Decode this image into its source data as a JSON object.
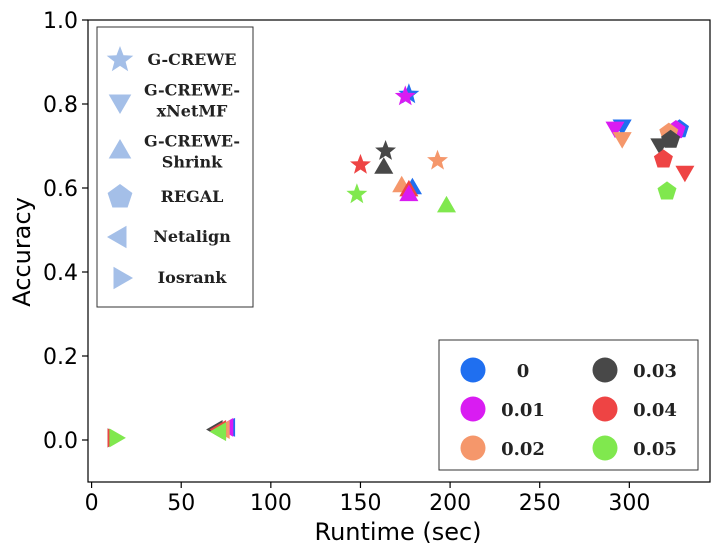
{
  "chart_data": {
    "type": "scatter",
    "xlabel": "Runtime (sec)",
    "ylabel": "Accuracy",
    "xlim": [
      -2,
      345
    ],
    "ylim": [
      -0.1,
      1.0
    ],
    "xticks": [
      "0",
      "50",
      "100",
      "150",
      "200",
      "250",
      "300"
    ],
    "yticks": [
      "0.0",
      "0.2",
      "0.4",
      "0.6",
      "0.8",
      "1.0"
    ],
    "methods": [
      {
        "name": "G-CREWE",
        "lines": [
          "G-CREWE"
        ],
        "marker": "star"
      },
      {
        "name": "G-CREWE-xNetMF",
        "lines": [
          "G-CREWE-",
          "xNetMF"
        ],
        "marker": "triangle-down"
      },
      {
        "name": "G-CREWE-Shrink",
        "lines": [
          "G-CREWE-",
          "Shrink"
        ],
        "marker": "triangle-up"
      },
      {
        "name": "REGAL",
        "lines": [
          "REGAL"
        ],
        "marker": "pentagon"
      },
      {
        "name": "Netalign",
        "lines": [
          "Netalign"
        ],
        "marker": "triangle-left"
      },
      {
        "name": "Iosrank",
        "lines": [
          "Iosrank"
        ],
        "marker": "triangle-right"
      }
    ],
    "levels": [
      {
        "label": "0",
        "color": "#1f6ff0"
      },
      {
        "label": "0.01",
        "color": "#d91cf2"
      },
      {
        "label": "0.02",
        "color": "#f5976b"
      },
      {
        "label": "0.03",
        "color": "#484848"
      },
      {
        "label": "0.04",
        "color": "#ee4444"
      },
      {
        "label": "0.05",
        "color": "#80e84e"
      }
    ],
    "legend_marker_color": "#a4bfe8",
    "points": [
      {
        "method": "Iosrank",
        "level": "0",
        "x": 12,
        "y": 0.005
      },
      {
        "method": "Iosrank",
        "level": "0.01",
        "x": 12,
        "y": 0.005
      },
      {
        "method": "Iosrank",
        "level": "0.02",
        "x": 12,
        "y": 0.005
      },
      {
        "method": "Iosrank",
        "level": "0.03",
        "x": 12,
        "y": 0.005
      },
      {
        "method": "Iosrank",
        "level": "0.04",
        "x": 12,
        "y": 0.005
      },
      {
        "method": "Iosrank",
        "level": "0.05",
        "x": 13,
        "y": 0.005
      },
      {
        "method": "Netalign",
        "level": "0.03",
        "x": 70,
        "y": 0.025
      },
      {
        "method": "Netalign",
        "level": "0",
        "x": 77,
        "y": 0.03
      },
      {
        "method": "Netalign",
        "level": "0.01",
        "x": 76,
        "y": 0.03
      },
      {
        "method": "Netalign",
        "level": "0.02",
        "x": 74,
        "y": 0.025
      },
      {
        "method": "Netalign",
        "level": "0.04",
        "x": 72,
        "y": 0.025
      },
      {
        "method": "Netalign",
        "level": "0.05",
        "x": 72,
        "y": 0.02
      },
      {
        "method": "G-CREWE",
        "level": "0",
        "x": 177,
        "y": 0.823
      },
      {
        "method": "G-CREWE",
        "level": "0.01",
        "x": 175,
        "y": 0.818
      },
      {
        "method": "G-CREWE",
        "level": "0.03",
        "x": 164,
        "y": 0.688
      },
      {
        "method": "G-CREWE",
        "level": "0.02",
        "x": 193,
        "y": 0.665
      },
      {
        "method": "G-CREWE",
        "level": "0.04",
        "x": 150,
        "y": 0.655
      },
      {
        "method": "G-CREWE",
        "level": "0.05",
        "x": 148,
        "y": 0.585
      },
      {
        "method": "G-CREWE-xNetMF",
        "level": "0",
        "x": 296,
        "y": 0.75
      },
      {
        "method": "G-CREWE-xNetMF",
        "level": "0.01",
        "x": 292,
        "y": 0.745
      },
      {
        "method": "G-CREWE-xNetMF",
        "level": "0.02",
        "x": 296,
        "y": 0.72
      },
      {
        "method": "G-CREWE-xNetMF",
        "level": "0.03",
        "x": 317,
        "y": 0.705
      },
      {
        "method": "G-CREWE-xNetMF",
        "level": "0.04",
        "x": 331,
        "y": 0.64
      },
      {
        "method": "G-CREWE-Shrink",
        "level": "0.03",
        "x": 163,
        "y": 0.647
      },
      {
        "method": "G-CREWE-Shrink",
        "level": "0.02",
        "x": 173,
        "y": 0.603
      },
      {
        "method": "G-CREWE-Shrink",
        "level": "0",
        "x": 179,
        "y": 0.598
      },
      {
        "method": "G-CREWE-Shrink",
        "level": "0.04",
        "x": 177,
        "y": 0.593
      },
      {
        "method": "G-CREWE-Shrink",
        "level": "0.01",
        "x": 177,
        "y": 0.582
      },
      {
        "method": "G-CREWE-Shrink",
        "level": "0.05",
        "x": 198,
        "y": 0.555
      },
      {
        "method": "REGAL",
        "level": "0",
        "x": 328,
        "y": 0.74
      },
      {
        "method": "REGAL",
        "level": "0.01",
        "x": 326,
        "y": 0.738
      },
      {
        "method": "REGAL",
        "level": "0.02",
        "x": 322,
        "y": 0.732
      },
      {
        "method": "REGAL",
        "level": "0.03",
        "x": 323,
        "y": 0.715
      },
      {
        "method": "REGAL",
        "level": "0.04",
        "x": 319,
        "y": 0.668
      },
      {
        "method": "REGAL",
        "level": "0.05",
        "x": 321,
        "y": 0.592
      }
    ]
  }
}
